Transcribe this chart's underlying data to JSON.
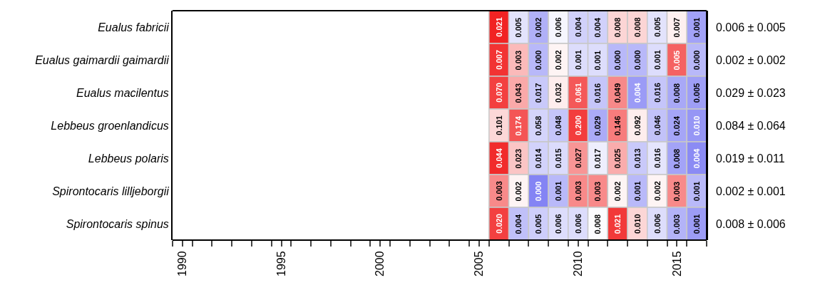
{
  "chart_data": {
    "type": "heatmap",
    "x": [
      2006,
      2007,
      2008,
      2009,
      2010,
      2011,
      2012,
      2013,
      2014,
      2015,
      2016
    ],
    "y_categories": [
      "Eualus fabricii",
      "Eualus gaimardii gaimardii",
      "Eualus macilentus",
      "Lebbeus groenlandicus",
      "Lebbeus polaris",
      "Spirontocaris lilljeborgii",
      "Spirontocaris spinus"
    ],
    "y2_categories": [
      "0.006 ± 0.005",
      "0.002 ± 0.002",
      "0.029 ± 0.023",
      "0.084 ± 0.064",
      "0.019 ± 0.011",
      "0.002 ± 0.001",
      "0.008 ± 0.006"
    ],
    "cells": [
      [
        0.021,
        0.005,
        0.002,
        0.006,
        0.004,
        0.004,
        0.008,
        0.008,
        0.005,
        0.007,
        0.001
      ],
      [
        0.007,
        0.003,
        0.0,
        0.002,
        0.001,
        0.001,
        0.0,
        0.0,
        0.001,
        0.005,
        0.0
      ],
      [
        0.07,
        0.043,
        0.017,
        0.032,
        0.061,
        0.016,
        0.049,
        0.004,
        0.016,
        0.008,
        0.005
      ],
      [
        0.101,
        0.174,
        0.058,
        0.048,
        0.2,
        0.029,
        0.146,
        0.092,
        0.046,
        0.024,
        0.01
      ],
      [
        0.044,
        0.023,
        0.014,
        0.015,
        0.027,
        0.017,
        0.025,
        0.013,
        0.016,
        0.008,
        0.004
      ],
      [
        0.003,
        0.002,
        0.0,
        0.001,
        0.003,
        0.003,
        0.002,
        0.001,
        0.002,
        0.003,
        0.001
      ],
      [
        0.02,
        0.004,
        0.005,
        0.006,
        0.006,
        0.008,
        0.021,
        0.01,
        0.006,
        0.003,
        0.001
      ]
    ],
    "cell_labels": [
      [
        "0.021",
        "0.005",
        "0.002",
        "0.006",
        "0.004",
        "0.004",
        "0.008",
        "0.008",
        "0.005",
        "0.007",
        "0.001"
      ],
      [
        "0.007",
        "0.003",
        "0.000",
        "0.002",
        "0.001",
        "0.001",
        "0.000",
        "0.000",
        "0.001",
        "0.005",
        "0.000"
      ],
      [
        "0.070",
        "0.043",
        "0.017",
        "0.032",
        "0.061",
        "0.016",
        "0.049",
        "0.004",
        "0.016",
        "0.008",
        "0.005"
      ],
      [
        "0.101",
        "0.174",
        "0.058",
        "0.048",
        "0.200",
        "0.029",
        "0.146",
        "0.092",
        "0.046",
        "0.024",
        "0.010"
      ],
      [
        "0.044",
        "0.023",
        "0.014",
        "0.015",
        "0.027",
        "0.017",
        "0.025",
        "0.013",
        "0.016",
        "0.008",
        "0.004"
      ],
      [
        "0.003",
        "0.002",
        "0.000",
        "0.001",
        "0.003",
        "0.003",
        "0.002",
        "0.001",
        "0.002",
        "0.003",
        "0.001"
      ],
      [
        "0.020",
        "0.004",
        "0.005",
        "0.006",
        "0.006",
        "0.008",
        "0.021",
        "0.010",
        "0.006",
        "0.003",
        "0.001"
      ]
    ],
    "data_labels": true,
    "xlim": [
      1989.5,
      2016.5
    ],
    "xticks": [
      {
        "value": 1989.5,
        "label": null
      },
      {
        "value": 1990.5,
        "label": null
      },
      {
        "value": 1991.5,
        "label": null
      },
      {
        "value": 1992.5,
        "label": null
      },
      {
        "value": 1993.5,
        "label": null
      },
      {
        "value": 1994.5,
        "label": null
      },
      {
        "value": 1995.5,
        "label": null
      },
      {
        "value": 1996.5,
        "label": null
      },
      {
        "value": 1997.5,
        "label": null
      },
      {
        "value": 1998.5,
        "label": null
      },
      {
        "value": 1999.5,
        "label": null
      },
      {
        "value": 2000.5,
        "label": null
      },
      {
        "value": 2001.5,
        "label": null
      },
      {
        "value": 2002.5,
        "label": null
      },
      {
        "value": 2003.5,
        "label": null
      },
      {
        "value": 2004.5,
        "label": null
      },
      {
        "value": 2005.5,
        "label": null
      },
      {
        "value": 2006.5,
        "label": null
      },
      {
        "value": 2007.5,
        "label": null
      },
      {
        "value": 2008.5,
        "label": null
      },
      {
        "value": 2009.5,
        "label": null
      },
      {
        "value": 2010.5,
        "label": null
      },
      {
        "value": 2011.5,
        "label": null
      },
      {
        "value": 2012.5,
        "label": null
      },
      {
        "value": 2013.5,
        "label": null
      },
      {
        "value": 2014.5,
        "label": null
      },
      {
        "value": 2015.5,
        "label": null
      },
      {
        "value": 2016.5,
        "label": null
      },
      1990,
      1995,
      2000,
      2005,
      2010,
      2015
    ]
  }
}
